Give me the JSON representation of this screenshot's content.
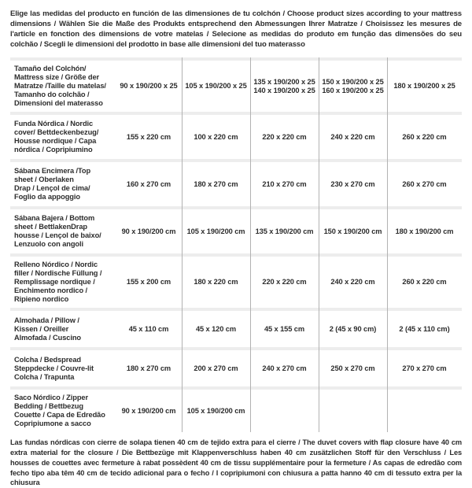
{
  "header": {
    "text": "Elige las medidas del producto en función de las dimensiones de tu colchón / Choose product sizes according to your mattress dimensions / Wählen Sie die Maße des Produkts entsprechend den Abmessungen Ihrer Matratze / Choisissez les mesures de l'article en fonction des dimensions de votre matelas / Selecione as medidas do produto em função das dimensões do seu colchão / Scegli le dimensioni del prodotto in base alle dimensioni del tuo materasso"
  },
  "table": {
    "rows": [
      {
        "label": "Tamaño del Colchón/\nMattress size / Größe der\nMatratze /Taille du matelas/\nTamanho do colchão /\nDimensioni del materasso",
        "values": [
          "90 x 190/200 x 25",
          "105 x 190/200 x 25",
          "135 x 190/200 x 25\n140 x 190/200 x 25",
          "150 x 190/200 x 25\n160 x 190/200 x 25",
          "180 x 190/200 x 25"
        ]
      },
      {
        "label": "Funda Nórdica / Nordic\ncover/ Bettdeckenbezug/\nHousse nordique / Capa\nnórdica / Copripiumino",
        "values": [
          "155 x 220 cm",
          "100 x 220 cm",
          "220 x 220 cm",
          "240 x 220 cm",
          "260 x 220 cm"
        ]
      },
      {
        "label": "Sábana Encimera /Top\nsheet / Oberlaken\nDrap / Lençol de cima/\nFoglio da appoggio",
        "values": [
          "160 x 270 cm",
          "180 x 270 cm",
          "210 x 270 cm",
          "230 x 270 cm",
          "260 x 270 cm"
        ]
      },
      {
        "label": "Sábana Bajera / Bottom\nsheet / BettlakenDrap\nhousse / Lençol de baixo/\nLenzuolo con angoli",
        "values": [
          "90 x 190/200 cm",
          "105 x 190/200 cm",
          "135 x 190/200 cm",
          "150 x 190/200 cm",
          "180 x 190/200 cm"
        ]
      },
      {
        "label": "Relleno Nórdico / Nordic\nfiller / Nordische Füllung /\nRemplissage nordique /\nEnchimento nordico /\nRipieno nordico",
        "values": [
          "155 x 200 cm",
          "180 x 220 cm",
          "220 x 220 cm",
          "240 x 220 cm",
          "260 x 220 cm"
        ]
      },
      {
        "label": "Almohada / Pillow /\nKissen / Oreiller\nAlmofada / Cuscino",
        "values": [
          "45 x 110 cm",
          "45 x 120 cm",
          "45 x 155 cm",
          "2 (45 x 90 cm)",
          "2 (45 x 110 cm)"
        ]
      },
      {
        "label": "Colcha / Bedspread\nSteppdecke / Couvre-lit\nColcha / Trapunta",
        "values": [
          "180 x 270 cm",
          "200 x 270 cm",
          "240 x 270 cm",
          "250 x 270 cm",
          "270 x 270 cm"
        ]
      },
      {
        "label": "Saco Nórdico / Zipper\nBedding / Bettbezug\nCouette / Capa de Edredão\nCopripiumone a sacco",
        "values": [
          "90 x 190/200 cm",
          "105 x 190/200 cm",
          "",
          "",
          ""
        ]
      }
    ]
  },
  "footer": {
    "text": "Las fundas nórdicas con cierre de solapa tienen 40 cm de tejido extra para el cierre / The duvet covers with flap closure have 40 cm extra material for the closure / Die Bettbezüge mit Klappenverschluss haben 40 cm zusätzlichen Stoff für den Verschluss / Les housses de couettes avec fermeture à rabat possèdent 40 cm de tissu supplémentaire pour la fermeture / As capas de edredão com fecho tipo aba têm 40 cm de tecido adicional para o fecho / I copripiumoni con chiusura a patta hanno 40 cm di tessuto extra per la chiusura"
  },
  "colors": {
    "row_separator": "#ededed",
    "column_line": "#b2b2b2",
    "text": "#2d2d2d",
    "background": "#ffffff"
  }
}
